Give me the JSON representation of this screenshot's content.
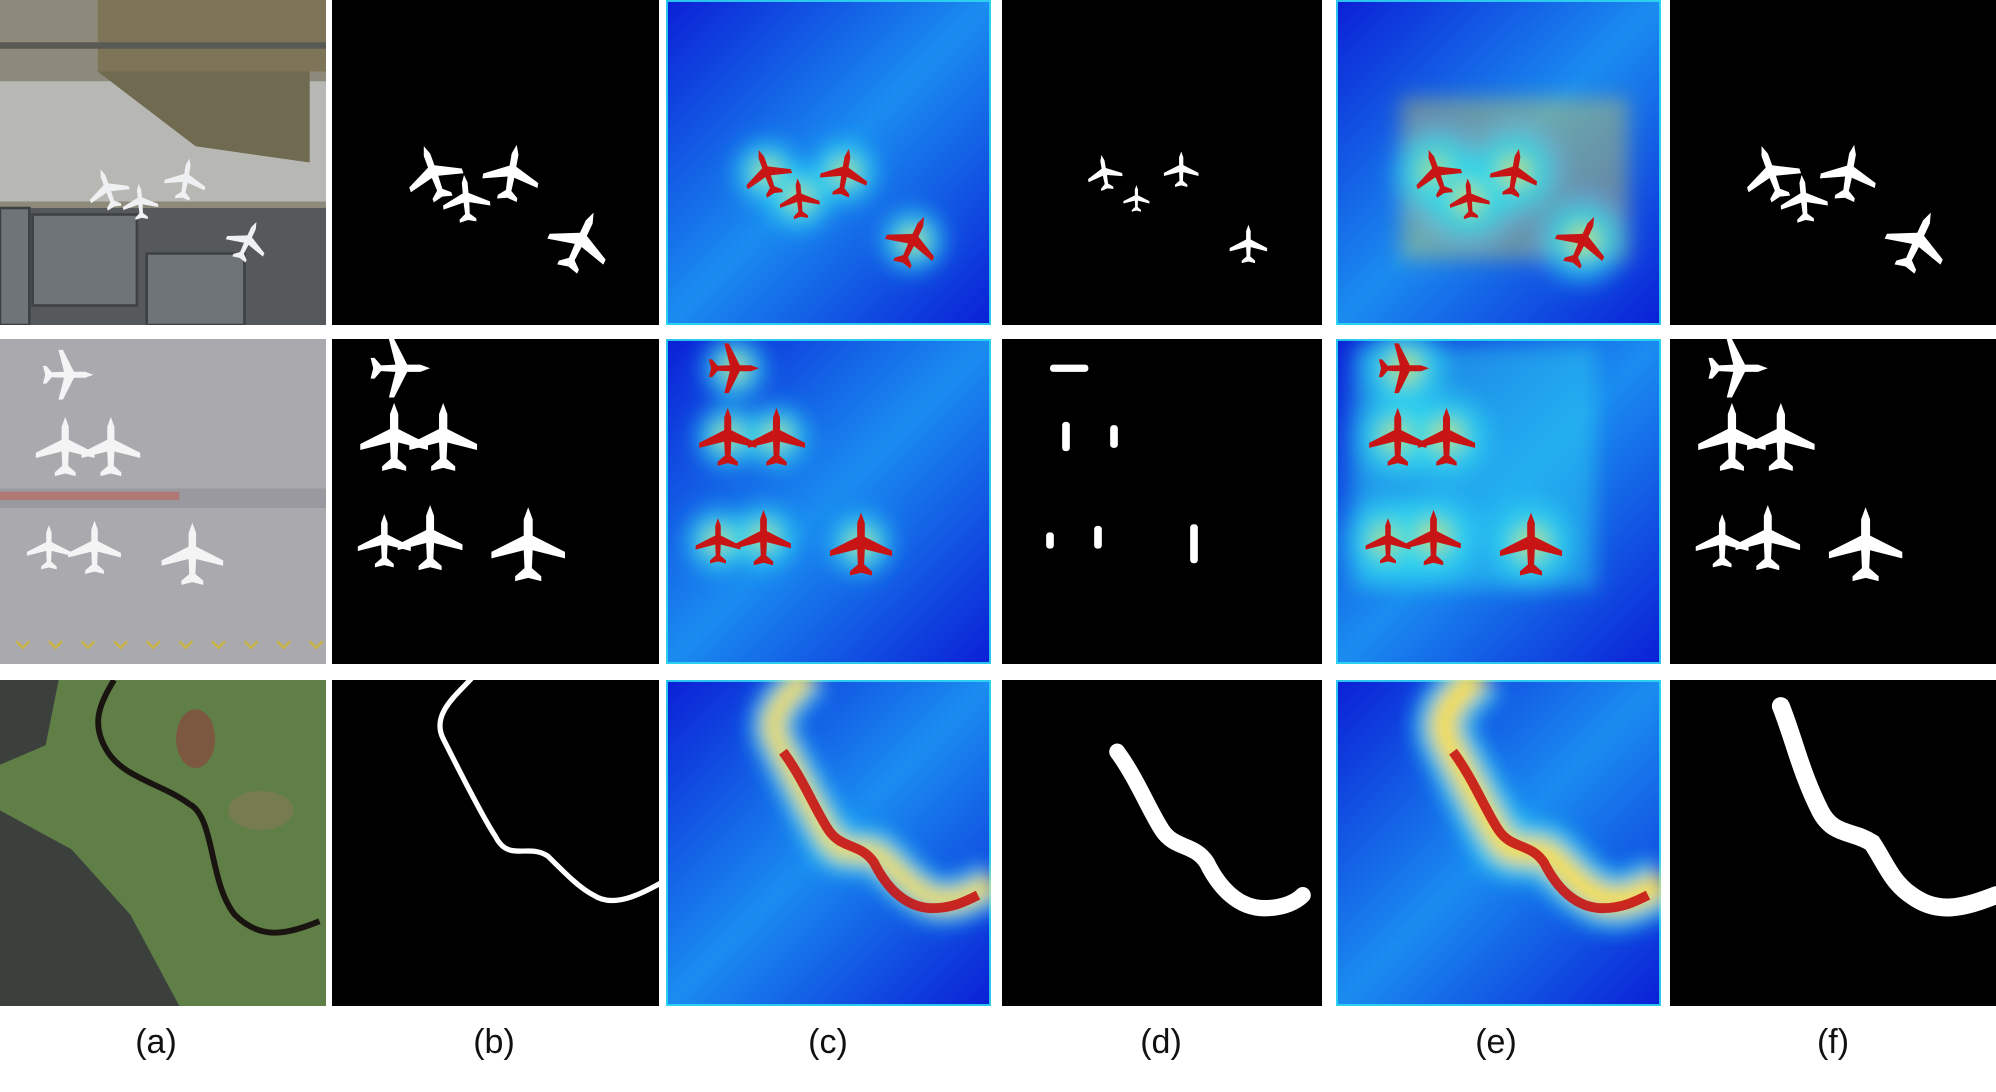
{
  "figure": {
    "columns": [
      {
        "id": "a",
        "label": "(a)"
      },
      {
        "id": "b",
        "label": "(b)"
      },
      {
        "id": "c",
        "label": "(c)"
      },
      {
        "id": "d",
        "label": "(d)"
      },
      {
        "id": "e",
        "label": "(e)"
      },
      {
        "id": "f",
        "label": "(f)"
      }
    ],
    "rows": [
      {
        "id": "row-1",
        "scene": "airport-apron"
      },
      {
        "id": "row-2",
        "scene": "airfield-parking"
      },
      {
        "id": "row-3",
        "scene": "river-forest"
      }
    ]
  },
  "colors": {
    "background": "#ffffff",
    "mask_background": "#000000",
    "mask_foreground": "#ffffff",
    "heatmap_low": "#0a1fd6",
    "heatmap_mid": "#2fd9f0",
    "heatmap_high": "#ffe034",
    "heatmap_peak": "#c81414"
  },
  "icons": {
    "object": "airplane-icon",
    "linear_object": "river-path-icon"
  }
}
